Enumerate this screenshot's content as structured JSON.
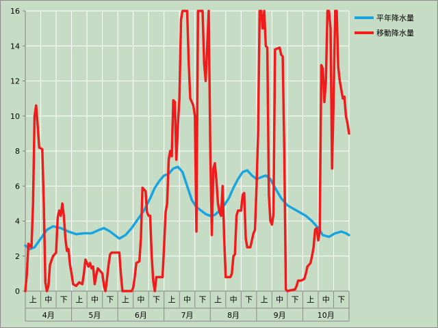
{
  "chart_data": {
    "type": "line",
    "ylim": [
      0,
      16
    ],
    "yticks": [
      "0",
      "2",
      "4",
      "6",
      "8",
      "10",
      "12",
      "14",
      "16"
    ],
    "grid": true,
    "legend_position": "top-right",
    "x_categories": [
      "上",
      "中",
      "下",
      "上",
      "中",
      "下",
      "上",
      "中",
      "下",
      "上",
      "中",
      "下",
      "上",
      "中",
      "下",
      "上",
      "中",
      "下",
      "上",
      "中",
      "下"
    ],
    "months": [
      "4月",
      "5月",
      "6月",
      "7月",
      "8月",
      "9月",
      "10月"
    ],
    "x_range": [
      0,
      21
    ],
    "series": [
      {
        "name": "平年降水量",
        "color": "#19a4e0",
        "points": [
          [
            0.0,
            2.6
          ],
          [
            0.3,
            2.4
          ],
          [
            0.6,
            2.5
          ],
          [
            1.0,
            3.0
          ],
          [
            1.4,
            3.5
          ],
          [
            1.8,
            3.7
          ],
          [
            2.3,
            3.6
          ],
          [
            2.8,
            3.4
          ],
          [
            3.3,
            3.25
          ],
          [
            3.8,
            3.3
          ],
          [
            4.3,
            3.3
          ],
          [
            4.8,
            3.5
          ],
          [
            5.1,
            3.6
          ],
          [
            5.5,
            3.4
          ],
          [
            5.8,
            3.2
          ],
          [
            6.1,
            3.0
          ],
          [
            6.5,
            3.2
          ],
          [
            6.9,
            3.6
          ],
          [
            7.3,
            4.1
          ],
          [
            7.7,
            4.6
          ],
          [
            8.1,
            5.3
          ],
          [
            8.4,
            5.9
          ],
          [
            8.7,
            6.3
          ],
          [
            9.0,
            6.6
          ],
          [
            9.3,
            6.7
          ],
          [
            9.6,
            7.0
          ],
          [
            9.9,
            7.1
          ],
          [
            10.2,
            6.8
          ],
          [
            10.5,
            6.0
          ],
          [
            10.8,
            5.2
          ],
          [
            11.1,
            4.8
          ],
          [
            11.4,
            4.6
          ],
          [
            11.7,
            4.4
          ],
          [
            12.0,
            4.3
          ],
          [
            12.3,
            4.35
          ],
          [
            12.6,
            4.6
          ],
          [
            12.9,
            4.9
          ],
          [
            13.2,
            5.3
          ],
          [
            13.5,
            5.9
          ],
          [
            13.8,
            6.4
          ],
          [
            14.1,
            6.8
          ],
          [
            14.4,
            6.9
          ],
          [
            14.7,
            6.6
          ],
          [
            15.0,
            6.4
          ],
          [
            15.3,
            6.5
          ],
          [
            15.6,
            6.6
          ],
          [
            15.9,
            6.4
          ],
          [
            16.2,
            5.9
          ],
          [
            16.6,
            5.3
          ],
          [
            17.0,
            4.9
          ],
          [
            17.4,
            4.7
          ],
          [
            17.8,
            4.5
          ],
          [
            18.2,
            4.3
          ],
          [
            18.6,
            4.0
          ],
          [
            19.0,
            3.6
          ],
          [
            19.3,
            3.2
          ],
          [
            19.7,
            3.1
          ],
          [
            20.1,
            3.3
          ],
          [
            20.5,
            3.4
          ],
          [
            20.8,
            3.3
          ],
          [
            21.0,
            3.2
          ]
        ]
      },
      {
        "name": "移動降水量",
        "color": "#ee1c1c",
        "points": [
          [
            0.0,
            0.0
          ],
          [
            0.1,
            1.0
          ],
          [
            0.2,
            2.7
          ],
          [
            0.4,
            2.5
          ],
          [
            0.5,
            5.0
          ],
          [
            0.6,
            10.0
          ],
          [
            0.7,
            10.6
          ],
          [
            0.8,
            9.5
          ],
          [
            0.9,
            8.2
          ],
          [
            1.1,
            8.1
          ],
          [
            1.2,
            5.0
          ],
          [
            1.3,
            0.5
          ],
          [
            1.4,
            0.0
          ],
          [
            1.5,
            0.3
          ],
          [
            1.6,
            1.5
          ],
          [
            1.8,
            2.0
          ],
          [
            2.0,
            2.2
          ],
          [
            2.1,
            4.2
          ],
          [
            2.2,
            4.6
          ],
          [
            2.3,
            4.3
          ],
          [
            2.4,
            5.0
          ],
          [
            2.5,
            4.3
          ],
          [
            2.6,
            3.0
          ],
          [
            2.7,
            2.3
          ],
          [
            2.8,
            2.4
          ],
          [
            2.9,
            1.5
          ],
          [
            3.0,
            1.0
          ],
          [
            3.1,
            0.4
          ],
          [
            3.3,
            0.3
          ],
          [
            3.5,
            0.5
          ],
          [
            3.7,
            0.4
          ],
          [
            3.8,
            1.0
          ],
          [
            3.9,
            1.8
          ],
          [
            4.0,
            1.6
          ],
          [
            4.1,
            1.4
          ],
          [
            4.2,
            1.6
          ],
          [
            4.3,
            1.3
          ],
          [
            4.4,
            1.4
          ],
          [
            4.5,
            0.4
          ],
          [
            4.6,
            0.9
          ],
          [
            4.7,
            1.3
          ],
          [
            4.8,
            1.2
          ],
          [
            4.9,
            1.1
          ],
          [
            5.0,
            1.0
          ],
          [
            5.1,
            0.3
          ],
          [
            5.2,
            0.0
          ],
          [
            5.3,
            0.7
          ],
          [
            5.4,
            1.5
          ],
          [
            5.5,
            2.1
          ],
          [
            5.6,
            2.2
          ],
          [
            5.7,
            2.2
          ],
          [
            6.1,
            2.2
          ],
          [
            6.2,
            1.0
          ],
          [
            6.3,
            0.0
          ],
          [
            6.9,
            0.0
          ],
          [
            7.0,
            0.2
          ],
          [
            7.1,
            0.8
          ],
          [
            7.2,
            1.6
          ],
          [
            7.4,
            1.7
          ],
          [
            7.5,
            3.0
          ],
          [
            7.6,
            5.9
          ],
          [
            7.8,
            5.7
          ],
          [
            7.9,
            4.5
          ],
          [
            8.0,
            4.3
          ],
          [
            8.1,
            4.3
          ],
          [
            8.2,
            2.0
          ],
          [
            8.3,
            0.6
          ],
          [
            8.4,
            0.0
          ],
          [
            8.5,
            0.8
          ],
          [
            8.9,
            0.8
          ],
          [
            9.0,
            2.5
          ],
          [
            9.1,
            4.5
          ],
          [
            9.2,
            5.0
          ],
          [
            9.3,
            7.5
          ],
          [
            9.4,
            8.0
          ],
          [
            9.5,
            7.7
          ],
          [
            9.6,
            10.9
          ],
          [
            9.7,
            10.8
          ],
          [
            9.8,
            7.5
          ],
          [
            9.9,
            9.5
          ],
          [
            10.0,
            11.0
          ],
          [
            10.1,
            15.5
          ],
          [
            10.2,
            16.0
          ],
          [
            10.4,
            16.0
          ],
          [
            10.5,
            16.0
          ],
          [
            10.6,
            13.0
          ],
          [
            10.7,
            11.0
          ],
          [
            10.8,
            10.8
          ],
          [
            10.9,
            10.6
          ],
          [
            11.0,
            10.0
          ],
          [
            11.1,
            3.4
          ],
          [
            11.2,
            16.0
          ],
          [
            11.3,
            16.0
          ],
          [
            11.4,
            16.0
          ],
          [
            11.5,
            16.0
          ],
          [
            11.6,
            13.0
          ],
          [
            11.7,
            12.0
          ],
          [
            11.8,
            14.0
          ],
          [
            11.9,
            16.0
          ],
          [
            12.0,
            8.0
          ],
          [
            12.1,
            3.2
          ],
          [
            12.2,
            7.0
          ],
          [
            12.3,
            7.3
          ],
          [
            12.4,
            6.3
          ],
          [
            12.5,
            5.0
          ],
          [
            12.6,
            4.5
          ],
          [
            12.7,
            4.3
          ],
          [
            12.8,
            6.0
          ],
          [
            12.9,
            3.0
          ],
          [
            13.0,
            0.8
          ],
          [
            13.3,
            0.8
          ],
          [
            13.4,
            1.0
          ],
          [
            13.5,
            2.0
          ],
          [
            13.6,
            2.1
          ],
          [
            13.7,
            4.3
          ],
          [
            13.8,
            4.6
          ],
          [
            14.0,
            4.6
          ],
          [
            14.1,
            5.5
          ],
          [
            14.2,
            5.6
          ],
          [
            14.3,
            3.0
          ],
          [
            14.4,
            2.5
          ],
          [
            14.6,
            2.5
          ],
          [
            14.7,
            2.9
          ],
          [
            14.8,
            3.3
          ],
          [
            14.9,
            3.5
          ],
          [
            15.0,
            6.0
          ],
          [
            15.1,
            9.0
          ],
          [
            15.2,
            16.0
          ],
          [
            15.3,
            16.0
          ],
          [
            15.4,
            15.0
          ],
          [
            15.5,
            16.0
          ],
          [
            15.6,
            14.0
          ],
          [
            15.7,
            13.9
          ],
          [
            15.8,
            5.5
          ],
          [
            15.9,
            4.0
          ],
          [
            16.0,
            3.8
          ],
          [
            16.1,
            4.4
          ],
          [
            16.2,
            13.8
          ],
          [
            16.5,
            13.9
          ],
          [
            16.6,
            13.5
          ],
          [
            16.7,
            13.4
          ],
          [
            16.8,
            8.0
          ],
          [
            16.9,
            0.1
          ],
          [
            17.0,
            0.0
          ],
          [
            17.5,
            0.1
          ],
          [
            17.6,
            0.3
          ],
          [
            17.7,
            0.6
          ],
          [
            17.9,
            0.6
          ],
          [
            18.1,
            0.7
          ],
          [
            18.2,
            1.0
          ],
          [
            18.3,
            1.4
          ],
          [
            18.5,
            1.6
          ],
          [
            18.6,
            2.0
          ],
          [
            18.7,
            2.5
          ],
          [
            18.8,
            3.5
          ],
          [
            18.9,
            3.6
          ],
          [
            19.0,
            2.9
          ],
          [
            19.1,
            3.4
          ],
          [
            19.2,
            12.9
          ],
          [
            19.3,
            12.7
          ],
          [
            19.4,
            10.8
          ],
          [
            19.5,
            12.0
          ],
          [
            19.6,
            16.0
          ],
          [
            19.7,
            16.0
          ],
          [
            19.8,
            15.0
          ],
          [
            19.9,
            7.0
          ],
          [
            20.0,
            11.0
          ],
          [
            20.1,
            16.0
          ],
          [
            20.2,
            16.0
          ],
          [
            20.3,
            12.8
          ],
          [
            20.4,
            12.0
          ],
          [
            20.5,
            11.5
          ],
          [
            20.6,
            11.0
          ],
          [
            20.7,
            11.1
          ],
          [
            20.8,
            10.0
          ],
          [
            20.9,
            9.6
          ],
          [
            21.0,
            9.0
          ]
        ]
      }
    ]
  }
}
